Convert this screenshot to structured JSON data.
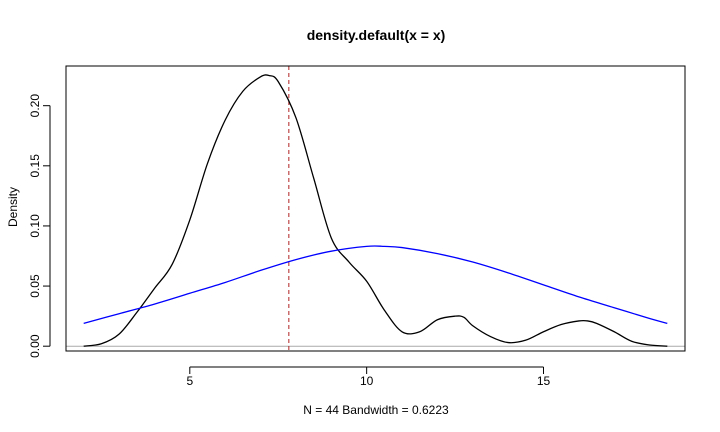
{
  "chart_data": {
    "type": "line",
    "title": "density.default(x = x)",
    "xlabel": "N = 44   Bandwidth = 0.6223",
    "ylabel": "Density",
    "xlim": [
      1.5,
      19.0
    ],
    "ylim": [
      -0.004,
      0.233
    ],
    "x_ticks": [
      {
        "value": 5,
        "label": "5"
      },
      {
        "value": 10,
        "label": "10"
      },
      {
        "value": 15,
        "label": "15"
      }
    ],
    "y_ticks": [
      {
        "value": 0.0,
        "label": "0.00"
      },
      {
        "value": 0.05,
        "label": "0.05"
      },
      {
        "value": 0.1,
        "label": "0.10"
      },
      {
        "value": 0.15,
        "label": "0.15"
      },
      {
        "value": 0.2,
        "label": "0.20"
      }
    ],
    "grid": false,
    "reference_lines": [
      {
        "orientation": "horizontal",
        "value": 0,
        "color": "#aaaaaa",
        "style": "solid"
      },
      {
        "orientation": "vertical",
        "value": 7.8,
        "color": "#b22222",
        "style": "dashed"
      }
    ],
    "series": [
      {
        "color": "#000000",
        "x": [
          2.0,
          2.5,
          3.0,
          3.5,
          4.0,
          4.5,
          5.0,
          5.5,
          6.0,
          6.5,
          7.0,
          7.25,
          7.5,
          8.0,
          8.5,
          9.0,
          9.5,
          10.0,
          10.5,
          11.0,
          11.5,
          12.0,
          12.5,
          12.75,
          13.0,
          13.5,
          14.0,
          14.5,
          15.0,
          15.5,
          16.0,
          16.25,
          16.5,
          17.0,
          17.5,
          18.0,
          18.5
        ],
        "y": [
          0.0,
          0.002,
          0.01,
          0.028,
          0.048,
          0.068,
          0.105,
          0.152,
          0.188,
          0.212,
          0.224,
          0.225,
          0.22,
          0.19,
          0.14,
          0.09,
          0.07,
          0.054,
          0.03,
          0.012,
          0.012,
          0.022,
          0.025,
          0.024,
          0.017,
          0.008,
          0.003,
          0.005,
          0.012,
          0.018,
          0.021,
          0.021,
          0.019,
          0.012,
          0.004,
          0.001,
          0.0
        ]
      },
      {
        "color": "#0000ff",
        "x": [
          2.0,
          3.0,
          4.0,
          5.0,
          6.0,
          7.0,
          8.0,
          9.0,
          10.0,
          10.5,
          11.0,
          12.0,
          13.0,
          14.0,
          15.0,
          16.0,
          17.0,
          18.0,
          18.5
        ],
        "y": [
          0.019,
          0.027,
          0.035,
          0.044,
          0.053,
          0.063,
          0.072,
          0.079,
          0.083,
          0.083,
          0.082,
          0.077,
          0.07,
          0.061,
          0.051,
          0.041,
          0.032,
          0.023,
          0.019
        ]
      }
    ]
  }
}
